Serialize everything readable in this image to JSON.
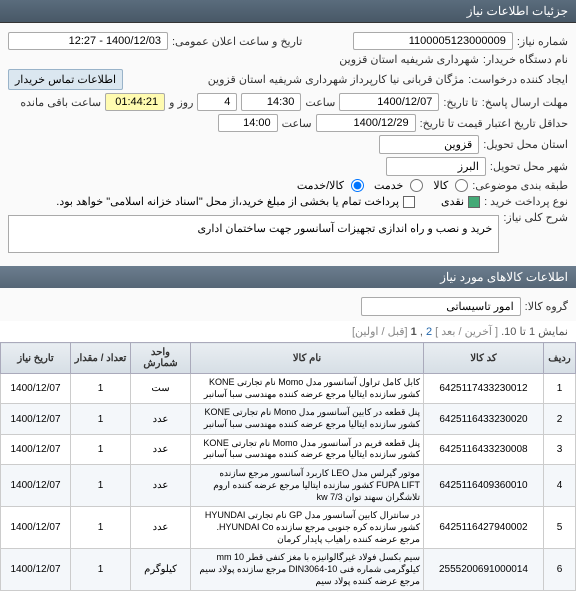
{
  "sections": {
    "header": "جزئیات اطلاعات نیاز",
    "items_header": "اطلاعات کالاهای مورد نیاز"
  },
  "info": {
    "need_no_label": "شماره نیاز:",
    "need_no": "1100005123000009",
    "announce_label": "تاریخ و ساعت اعلان عمومی:",
    "announce_value": "1400/12/03 - 12:27",
    "buyer_label": "نام دستگاه خریدار:",
    "buyer_value": "شهرداری شریفیه استان قزوین",
    "creator_label": "ایجاد کننده درخواست:",
    "creator_value": "مژگان قربانی نیا کارپرداز شهرداری شریفیه استان قزوین",
    "contact_label": "اطلاعات تماس خریدار",
    "deadline_label": "مهلت ارسال پاسخ:",
    "tadate": "تا تاریخ:",
    "deadline_date": "1400/12/07",
    "saat": "ساعت",
    "deadline_time": "14:30",
    "days": "4",
    "roozva": "روز و",
    "remain": "01:44:21",
    "remain_tail": "ساعت باقی مانده",
    "valid_label": "حداقل تاریخ اعتبار قیمت تا تاریخ:",
    "valid_date": "1400/12/29",
    "valid_time": "14:00",
    "province_label": "استان محل تحویل:",
    "province": "قزوین",
    "city_label": "شهر محل تحویل:",
    "city": "البرز",
    "class_label": "طبقه بندی موضوعی:",
    "opt_kala": "کالا",
    "opt_khadamat": "خدمت",
    "opt_kalakhadamat": "کالا/خدمت",
    "paytype_label": "نوع پرداخت خرید :",
    "pay_naghdi": "نقدی",
    "pay_note": "پرداخت تمام یا بخشی از مبلغ خرید،از محل \"اسناد خزانه اسلامی\" خواهد بود.",
    "need_title_label": "شرح کلی نیاز:",
    "need_title": "خرید و نصب و راه اندازی تجهیزات آسانسور جهت ساختمان اداری",
    "group_label": "گروه کالا:",
    "group_value": "امور تاسیساتی"
  },
  "pager": {
    "text_a": "نمایش 1 تا 10.",
    "text_b": "[ آخرین / بعد ]",
    "pg2": "2",
    "pg1": "1",
    "text_c": "[قبل / اولین]"
  },
  "columns": {
    "c0": "ردیف",
    "c1": "کد کالا",
    "c2": "نام کالا",
    "c3": "واحد شمارش",
    "c4": "تعداد / مقدار",
    "c5": "تاریخ نیاز"
  },
  "rows": [
    {
      "n": "1",
      "code": "6425117433230012",
      "desc": "کابل کامل تراول آسانسور مدل Momo نام تجارتی KONE کشور سازنده ایتالیا مرجع عرضه کننده مهندسی سبا آسانبر",
      "unit": "ست",
      "qty": "1",
      "date": "1400/12/07"
    },
    {
      "n": "2",
      "code": "6425116433230020",
      "desc": "پنل قطعه در کابین آسانسور مدل Mono نام تجارتی KONE کشور سازنده ایتالیا مرجع عرضه کننده مهندسی سبا آسانبر",
      "unit": "عدد",
      "qty": "1",
      "date": "1400/12/07"
    },
    {
      "n": "3",
      "code": "6425116433230008",
      "desc": "پنل قطعه فریم در آسانسور مدل Momo نام تجارتی KONE کشور سازنده ایتالیا مرجع عرضه کننده مهندسی سبا آسانبر",
      "unit": "عدد",
      "qty": "1",
      "date": "1400/12/07"
    },
    {
      "n": "4",
      "code": "6425116409360010",
      "desc": "موتور گیرلس مدل LEO کاربرد آسانسور مرجع سازنده FUPA LIFT کشور سازنده ایتالیا مرجع عرضه کننده اروم تلاشگران سهند توان kw 7/3",
      "unit": "عدد",
      "qty": "1",
      "date": "1400/12/07"
    },
    {
      "n": "5",
      "code": "6425116427940002",
      "desc": "در سانترال کابین آسانسور مدل GP نام تجارتی HYUNDAI کشور سازنده کره جنوبی مرجع سازنده HYUNDAI Co. مرجع عرضه کننده راهیاب پایدار کرمان",
      "unit": "عدد",
      "qty": "1",
      "date": "1400/12/07"
    },
    {
      "n": "6",
      "code": "2555200691000014",
      "desc": "سیم بکسل فولاد غیرگالوانیزه با مغز کنفی قطر mm 10 کیلوگرمی شماره فنی 10-DIN3064 مرجع سازنده پولاد سیم مرجع عرضه کننده پولاد سیم",
      "unit": "کیلوگرم",
      "qty": "1",
      "date": "1400/12/07"
    }
  ]
}
